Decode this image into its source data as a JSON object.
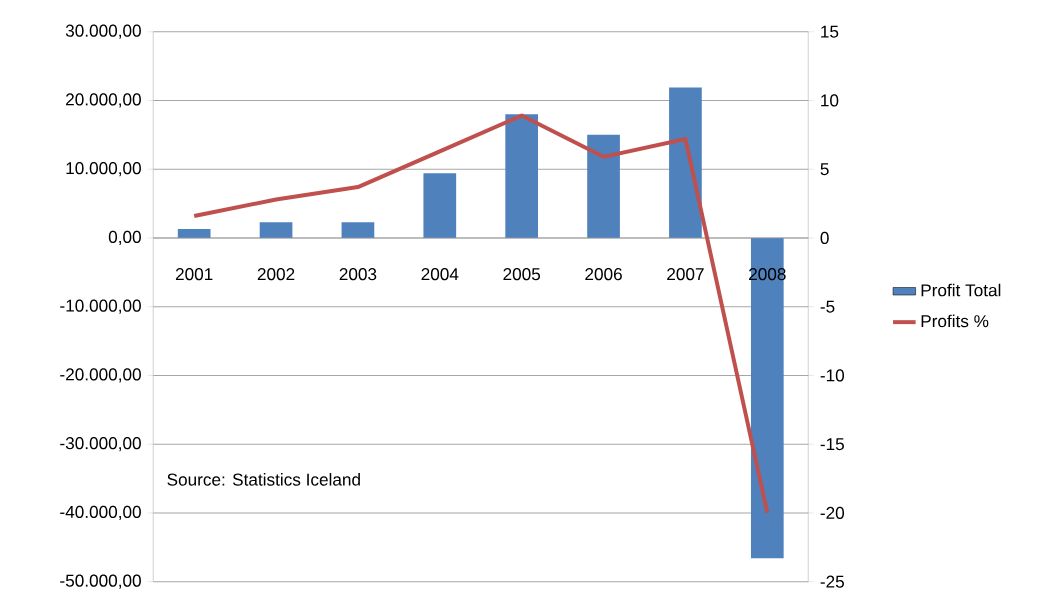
{
  "chart_data": {
    "type": "bar",
    "categories": [
      "2001",
      "2002",
      "2003",
      "2004",
      "2005",
      "2006",
      "2007",
      "2008"
    ],
    "series": [
      {
        "name": "Profit Total",
        "color": "#4f81bd",
        "values": [
          1300,
          2300,
          2300,
          9400,
          18000,
          15000,
          21900,
          -46600
        ]
      },
      {
        "name": "Profits %",
        "type": "line",
        "axis": "y2",
        "color": "#c0504d",
        "values": [
          1.6,
          2.8,
          3.7,
          6.3,
          8.9,
          5.9,
          7.2,
          -20
        ]
      }
    ],
    "ylim": [
      -50000,
      30000
    ],
    "yticks": [
      {
        "value": -50000,
        "label": "-50.000,00"
      },
      {
        "value": -40000,
        "label": "-40.000,00"
      },
      {
        "value": -30000,
        "label": "-30.000,00"
      },
      {
        "value": -20000,
        "label": "-20.000,00"
      },
      {
        "value": -10000,
        "label": "-10.000,00"
      },
      {
        "value": 0,
        "label": "0,00"
      },
      {
        "value": 10000,
        "label": "10.000,00"
      },
      {
        "value": 20000,
        "label": "20.000,00"
      },
      {
        "value": 30000,
        "label": "30.000,00"
      }
    ],
    "y2lim": [
      -25,
      15
    ],
    "y2ticks": [
      -25,
      -20,
      -15,
      -10,
      -5,
      0,
      5,
      10,
      15
    ],
    "grid": "y",
    "legend": "right",
    "annotations": [
      "Source: Statistics Iceland"
    ]
  }
}
